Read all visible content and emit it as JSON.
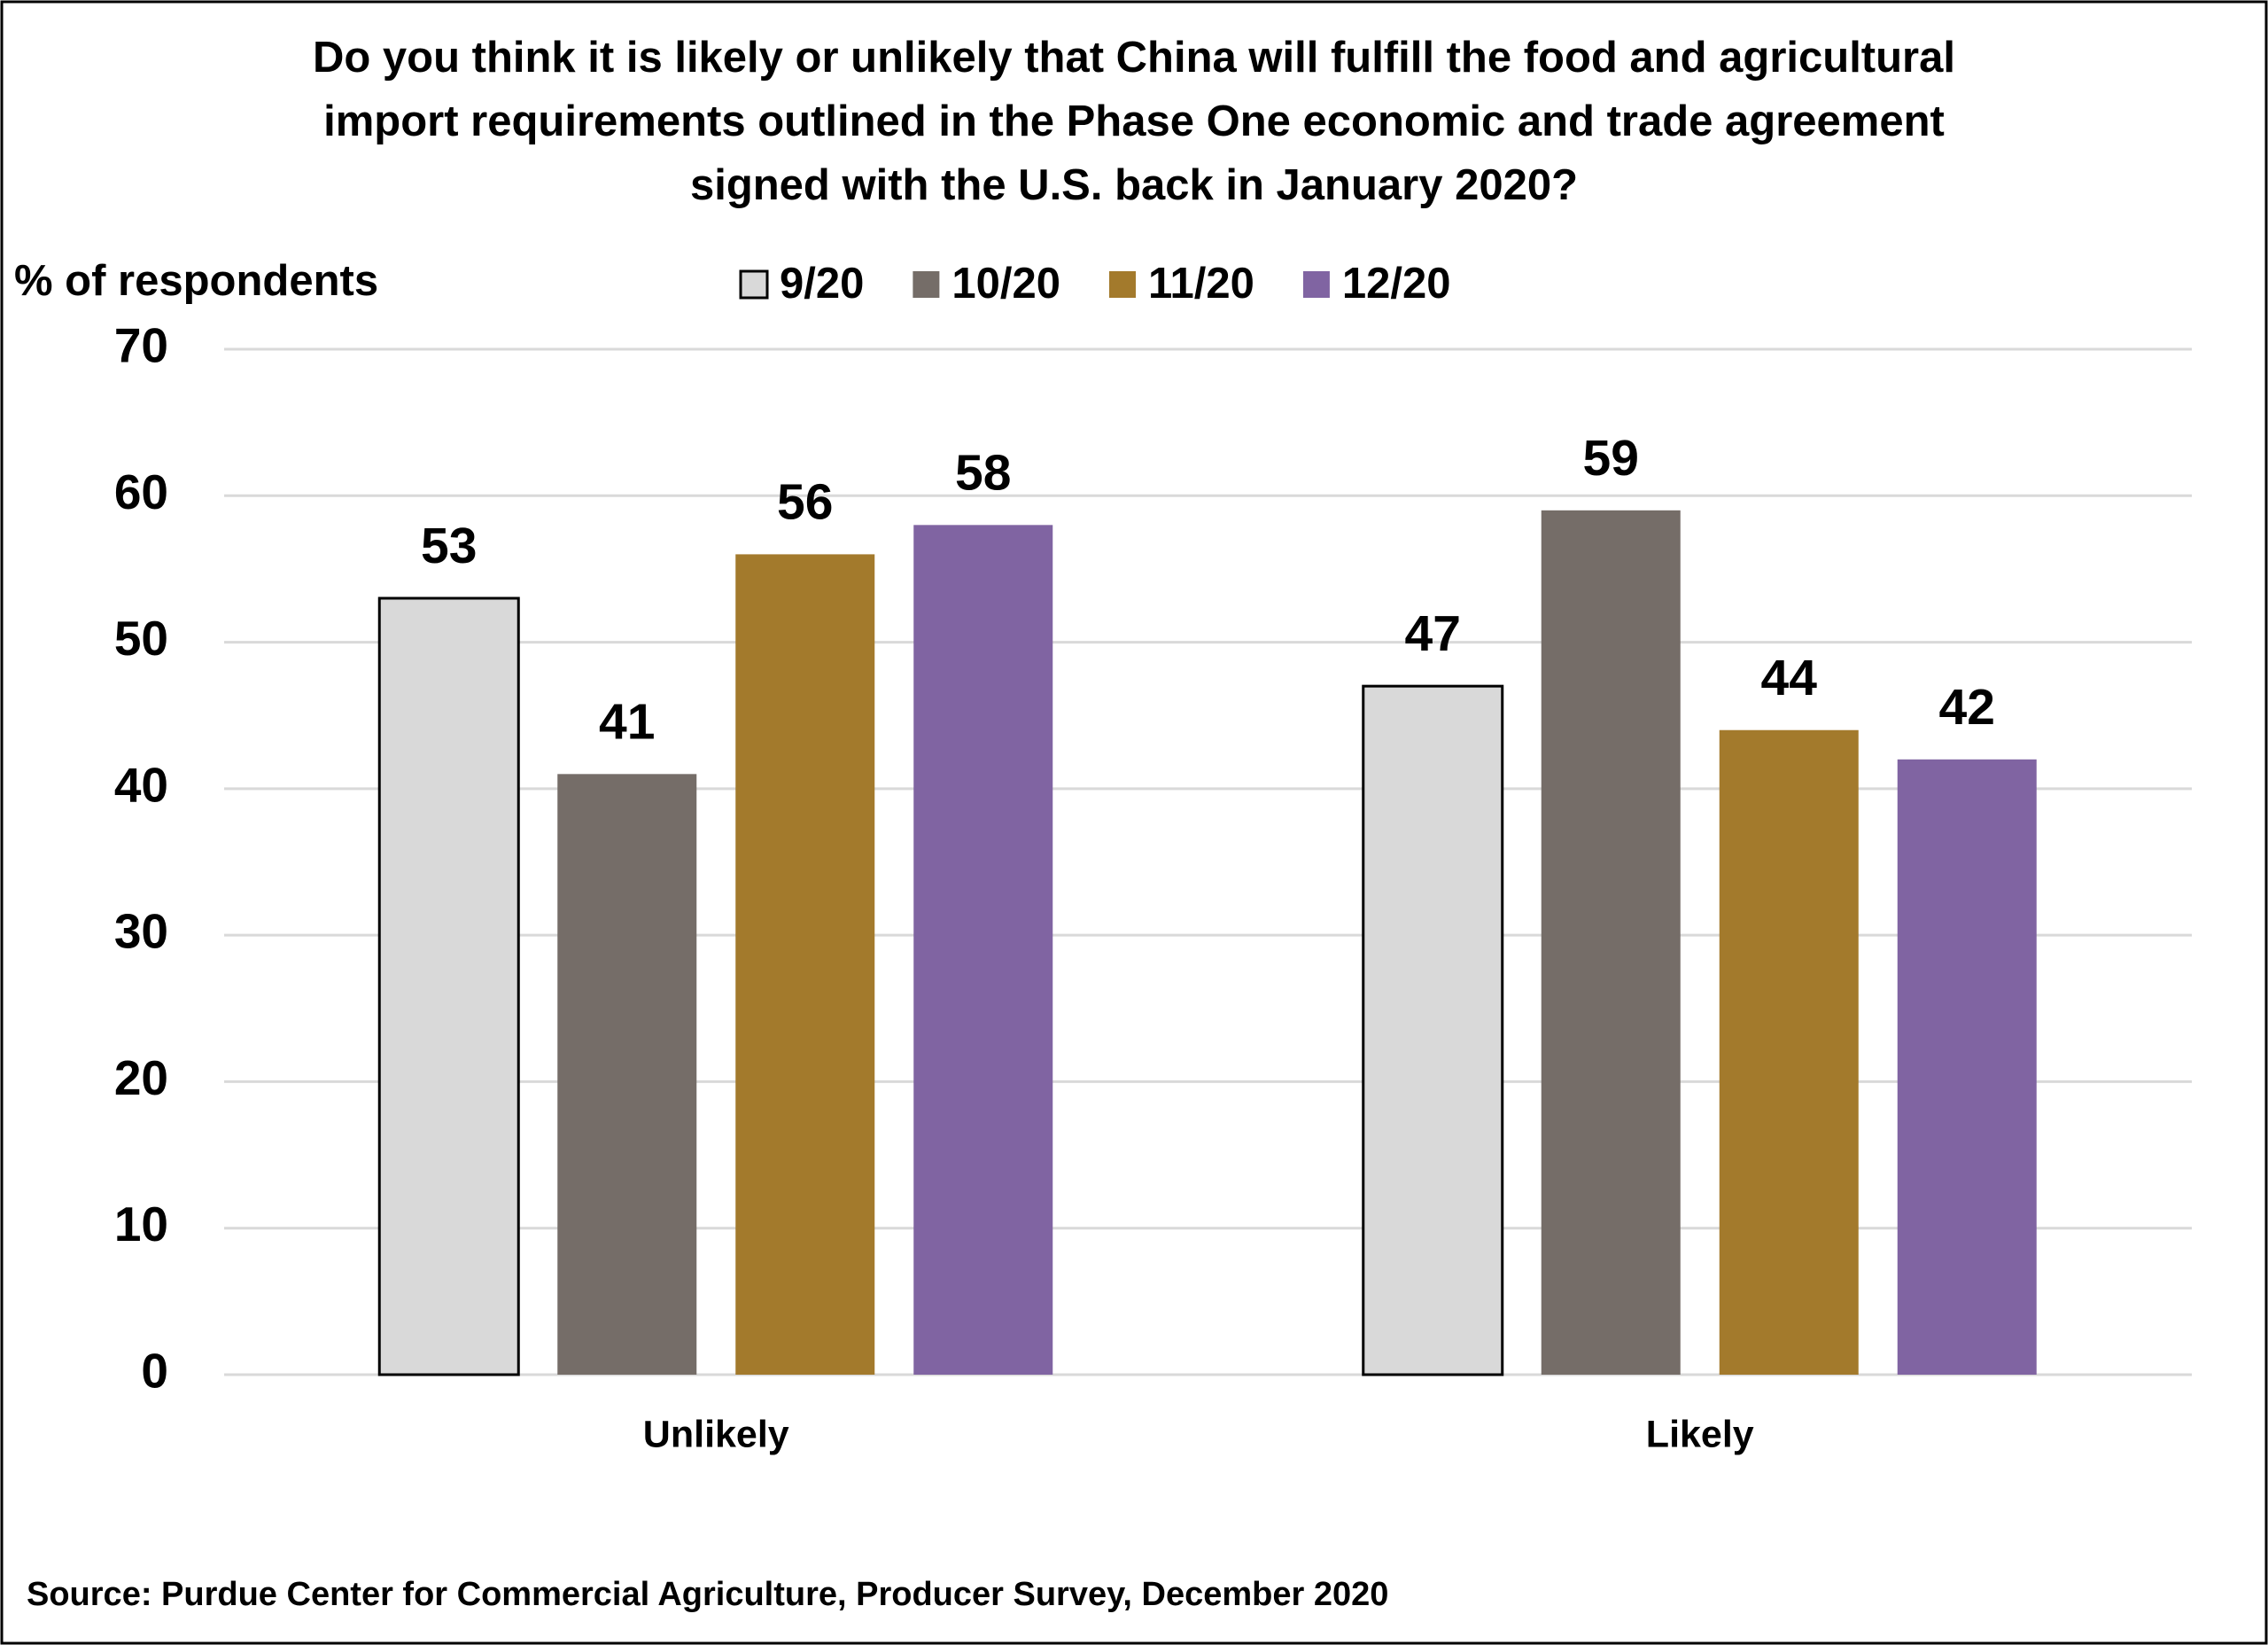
{
  "chart_data": {
    "type": "bar",
    "title": [
      "Do you think it is likely or unlikely that China will fulfill the food and agricultural",
      "import requirements outlined in the Phase One economic and trade agreement",
      "signed with the U.S. back in January 2020?"
    ],
    "y_label": "% of respondents",
    "source": "Source: Purdue Center for Commercial Agriculture, Producer Survey, December 2020",
    "categories": [
      "Unlikely",
      "Likely"
    ],
    "series": [
      {
        "name": "9/20",
        "color": "#d9d9d9",
        "values": [
          53,
          47
        ]
      },
      {
        "name": "10/20",
        "color": "#756d68",
        "values": [
          41,
          59
        ]
      },
      {
        "name": "11/20",
        "color": "#a37a2c",
        "values": [
          56,
          44
        ]
      },
      {
        "name": "12/20",
        "color": "#8064a2",
        "values": [
          58,
          42
        ]
      }
    ],
    "ylim": [
      0,
      70
    ],
    "yticks": [
      0,
      10,
      20,
      30,
      40,
      50,
      60,
      70
    ],
    "grid": true,
    "legend": "top"
  }
}
